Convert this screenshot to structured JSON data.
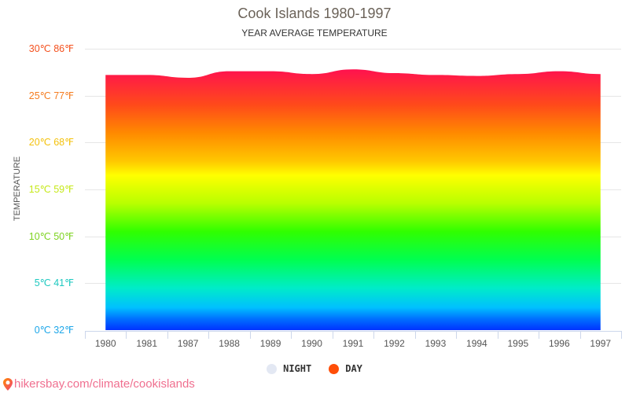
{
  "chart": {
    "title": "Cook Islands 1980-1997",
    "subtitle": "YEAR AVERAGE TEMPERATURE",
    "ylabel": "TEMPERATURE",
    "yticks": [
      {
        "label": "30℃ 86℉",
        "value": 30,
        "color": "#f4511e"
      },
      {
        "label": "25℃ 77℉",
        "value": 25,
        "color": "#f57c1f"
      },
      {
        "label": "20℃ 68℉",
        "value": 20,
        "color": "#f4c20d"
      },
      {
        "label": "15℃ 59℉",
        "value": 15,
        "color": "#c6e91a"
      },
      {
        "label": "10℃ 50℉",
        "value": 10,
        "color": "#7ed321"
      },
      {
        "label": "5℃ 41℉",
        "value": 5,
        "color": "#1ec9c0"
      },
      {
        "label": "0℃ 32℉",
        "value": 0,
        "color": "#1ea7e9"
      }
    ],
    "xlabels": [
      "1980",
      "1981",
      "1987",
      "1988",
      "1989",
      "1990",
      "1991",
      "1992",
      "1993",
      "1994",
      "1995",
      "1996",
      "1997"
    ],
    "legend": [
      {
        "label": "NIGHT",
        "color": "#e3e8f3"
      },
      {
        "label": "DAY",
        "color": "#ff4e08"
      }
    ]
  },
  "footer": {
    "text": "hikersbay.com/climate/cookislands",
    "icon": "map-pin-icon"
  },
  "chart_data": {
    "type": "area",
    "title": "Cook Islands 1980-1997",
    "subtitle": "YEAR AVERAGE TEMPERATURE",
    "xlabel": "",
    "ylabel": "TEMPERATURE",
    "categories": [
      "1980",
      "1981",
      "1987",
      "1988",
      "1989",
      "1990",
      "1991",
      "1992",
      "1993",
      "1994",
      "1995",
      "1996",
      "1997"
    ],
    "series": [
      {
        "name": "DAY",
        "values": [
          27.2,
          27.2,
          26.9,
          27.6,
          27.6,
          27.3,
          27.8,
          27.4,
          27.2,
          27.1,
          27.3,
          27.6,
          27.3
        ]
      },
      {
        "name": "NIGHT",
        "values": []
      }
    ],
    "ylim": [
      0,
      30
    ],
    "ytick_labels": [
      "0℃ 32℉",
      "5℃ 41℉",
      "10℃ 50℉",
      "15℃ 59℉",
      "20℃ 68℉",
      "25℃ 77℉",
      "30℃ 86℉"
    ],
    "grid": true,
    "legend_position": "bottom"
  }
}
